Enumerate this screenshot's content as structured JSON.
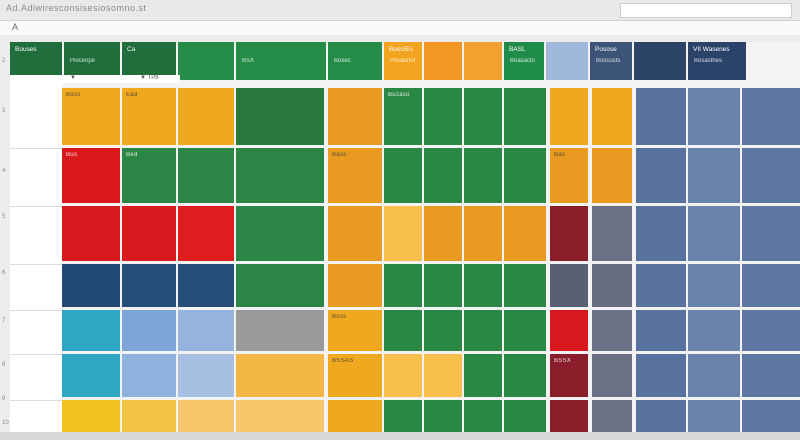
{
  "window": {
    "doc_path": "Ad.Adiwiresconsisesiosomno.st",
    "cell_ref": "A"
  },
  "row_header_marks": [
    "2",
    "3",
    "4",
    "5",
    "6",
    "7",
    "8",
    "9",
    "10"
  ],
  "subbar": {
    "left": "▼ ",
    "right": "▼ ТР8"
  },
  "header_cells": [
    {
      "id": "h1",
      "label": "Bouses",
      "sub": "",
      "color": "#1f6e3b"
    },
    {
      "id": "h2",
      "label": "",
      "sub": "Piocenpe",
      "color": "#1f6e3b"
    },
    {
      "id": "h3",
      "label": "Ca",
      "sub": "",
      "color": "#1f6e3b"
    },
    {
      "id": "h4",
      "label": "",
      "sub": "",
      "color": "#258c48"
    },
    {
      "id": "h5",
      "label": "",
      "sub": "BSX",
      "color": "#258c48"
    },
    {
      "id": "h6",
      "label": "",
      "sub": "Boxec",
      "color": "#258c48"
    },
    {
      "id": "h7",
      "label": "Boss/Es",
      "sub": "Pouasnor",
      "color": "#f2a41e"
    },
    {
      "id": "h8",
      "label": "",
      "sub": "",
      "color": "#f29624"
    },
    {
      "id": "h9",
      "label": "",
      "sub": "",
      "color": "#f0a130"
    },
    {
      "id": "h10",
      "label": "BASL",
      "sub": "Boasacto",
      "color": "#1f8c4a"
    },
    {
      "id": "h11",
      "label": "",
      "sub": "",
      "color": "#9fb8dc"
    },
    {
      "id": "h12",
      "label": "Posose",
      "sub": "Boscusts",
      "color": "#3c5478"
    },
    {
      "id": "h13",
      "label": "",
      "sub": "",
      "color": "#2c4468"
    },
    {
      "id": "h14",
      "label": "VII Wasenes",
      "sub": "Bosasthes",
      "color": "#2b4269"
    }
  ],
  "rows": [
    {
      "id": "r1",
      "cells": [
        {
          "label": "Boss",
          "color": "#f0a81e"
        },
        {
          "label": "Ead",
          "color": "#f0a81e"
        },
        {
          "label": "",
          "color": "#f0a81e"
        },
        {
          "label": "",
          "color": "#2a7a3f"
        },
        {
          "label": "",
          "color": "#e89b20"
        },
        {
          "label": "Buzaso",
          "color": "#2a8744"
        },
        {
          "label": "",
          "color": "#2a8744"
        },
        {
          "label": "",
          "color": "#2a8744"
        },
        {
          "label": "",
          "color": "#2a8744"
        },
        {
          "label": "",
          "color": "#f0a81e"
        },
        {
          "label": "",
          "color": "#f0a81e"
        },
        {
          "label": "",
          "color": "#5872a0"
        },
        {
          "label": "",
          "color": "#6b82aa"
        },
        {
          "label": "",
          "color": "#5e77a3"
        }
      ]
    },
    {
      "id": "r2",
      "cells": [
        {
          "label": "Bus",
          "color": "#d9181b"
        },
        {
          "label": "Bed",
          "color": "#2b8545"
        },
        {
          "label": "",
          "color": "#2b8545"
        },
        {
          "label": "",
          "color": "#2b8545"
        },
        {
          "label": "Bass",
          "color": "#e89b20"
        },
        {
          "label": "",
          "color": "#2a8744"
        },
        {
          "label": "",
          "color": "#2a8744"
        },
        {
          "label": "",
          "color": "#2a8744"
        },
        {
          "label": "",
          "color": "#2a8744"
        },
        {
          "label": "Bas",
          "color": "#e89b20"
        },
        {
          "label": "",
          "color": "#e89b20"
        },
        {
          "label": "",
          "color": "#5872a0"
        },
        {
          "label": "",
          "color": "#6b82aa"
        },
        {
          "label": "",
          "color": "#5e77a3"
        }
      ]
    },
    {
      "id": "r3",
      "cells": [
        {
          "label": "",
          "color": "#d81a1e"
        },
        {
          "label": "",
          "color": "#d81a1e"
        },
        {
          "label": "",
          "color": "#e01d1e"
        },
        {
          "label": "",
          "color": "#2b8545"
        },
        {
          "label": "",
          "color": "#e89b20"
        },
        {
          "label": "",
          "color": "#f7c04a"
        },
        {
          "label": "",
          "color": "#e89b20"
        },
        {
          "label": "",
          "color": "#e89b20"
        },
        {
          "label": "",
          "color": "#e89b20"
        },
        {
          "label": "",
          "color": "#8a1d2a"
        },
        {
          "label": "",
          "color": "#6a7184"
        },
        {
          "label": "",
          "color": "#5872a0"
        },
        {
          "label": "",
          "color": "#6b82aa"
        },
        {
          "label": "",
          "color": "#5e77a3"
        }
      ]
    },
    {
      "id": "r4",
      "cells": [
        {
          "label": "",
          "color": "#234a76"
        },
        {
          "label": "",
          "color": "#254e7b"
        },
        {
          "label": "",
          "color": "#254e7b"
        },
        {
          "label": "",
          "color": "#2b8545"
        },
        {
          "label": "",
          "color": "#e89b20"
        },
        {
          "label": "",
          "color": "#2a8744"
        },
        {
          "label": "",
          "color": "#2a8744"
        },
        {
          "label": "",
          "color": "#2a8744"
        },
        {
          "label": "",
          "color": "#2a8744"
        },
        {
          "label": "",
          "color": "#5b5f72"
        },
        {
          "label": "",
          "color": "#676d80"
        },
        {
          "label": "",
          "color": "#5872a0"
        },
        {
          "label": "",
          "color": "#6b82aa"
        },
        {
          "label": "",
          "color": "#5e77a3"
        }
      ]
    },
    {
      "id": "r5",
      "cells": [
        {
          "label": "",
          "color": "#2fa6c3"
        },
        {
          "label": "",
          "color": "#7ea4d8"
        },
        {
          "label": "",
          "color": "#95b4dd"
        },
        {
          "label": "",
          "color": "#9a9a9a"
        },
        {
          "label": "Boss",
          "color": "#f0a81e"
        },
        {
          "label": "",
          "color": "#2a8744"
        },
        {
          "label": "",
          "color": "#2a8744"
        },
        {
          "label": "",
          "color": "#2a8744"
        },
        {
          "label": "",
          "color": "#2a8744"
        },
        {
          "label": "",
          "color": "#d81a1e"
        },
        {
          "label": "",
          "color": "#6a7184"
        },
        {
          "label": "",
          "color": "#5872a0"
        },
        {
          "label": "",
          "color": "#6b82aa"
        },
        {
          "label": "",
          "color": "#5e77a3"
        }
      ]
    },
    {
      "id": "r6",
      "cells": [
        {
          "label": "",
          "color": "#2fa6c3"
        },
        {
          "label": "",
          "color": "#8fb1de"
        },
        {
          "label": "",
          "color": "#a6bfe2"
        },
        {
          "label": "",
          "color": "#f4b745"
        },
        {
          "label": "BSSAS",
          "color": "#f0a81e"
        },
        {
          "label": "",
          "color": "#f7c04a"
        },
        {
          "label": "",
          "color": "#f7c04a"
        },
        {
          "label": "",
          "color": "#2a8744"
        },
        {
          "label": "",
          "color": "#2a8744"
        },
        {
          "label": "BSSX",
          "color": "#8a1d2a"
        },
        {
          "label": "",
          "color": "#6a7184"
        },
        {
          "label": "",
          "color": "#5872a0"
        },
        {
          "label": "",
          "color": "#6b82aa"
        },
        {
          "label": "",
          "color": "#5e77a3"
        }
      ]
    },
    {
      "id": "r7",
      "cells": [
        {
          "label": "",
          "color": "#f3c21f"
        },
        {
          "label": "",
          "color": "#f1c443"
        },
        {
          "label": "",
          "color": "#f6c76a"
        },
        {
          "label": "",
          "color": "#f6c76a"
        },
        {
          "label": "",
          "color": "#f0a81e"
        },
        {
          "label": "",
          "color": "#2a8744"
        },
        {
          "label": "",
          "color": "#2a8744"
        },
        {
          "label": "",
          "color": "#2a8744"
        },
        {
          "label": "",
          "color": "#2a8744"
        },
        {
          "label": "",
          "color": "#8a1d2a"
        },
        {
          "label": "",
          "color": "#6a7184"
        },
        {
          "label": "",
          "color": "#5872a0"
        },
        {
          "label": "",
          "color": "#6b82aa"
        },
        {
          "label": "",
          "color": "#5e77a3"
        }
      ]
    }
  ]
}
